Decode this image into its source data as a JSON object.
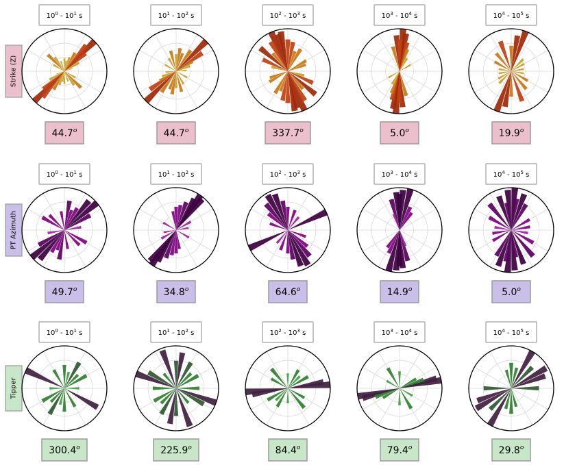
{
  "chart_data": {
    "type": "polar-rose",
    "periods": [
      "10^0 - 10^1 s",
      "10^1 - 10^2 s",
      "10^2 - 10^3 s",
      "10^3 - 10^4 s",
      "10^4 - 10^5 s"
    ],
    "rows": [
      {
        "label": "Strike (Z)",
        "label_bg": "#ebc0cc",
        "box_bg": "#ebc0cc",
        "colors": [
          "#c8c850",
          "#c8a024",
          "#c87814",
          "#c04010",
          "#a02808"
        ],
        "median_angles": [
          "44.7",
          "44.7",
          "337.7",
          "5.0",
          "19.9"
        ],
        "roses": [
          {
            "azimuths": [
              45,
              225,
              40,
              220,
              50,
              230,
              30,
              210,
              60,
              240,
              20,
              200,
              315,
              135,
              325,
              145,
              0,
              180,
              10,
              190,
              300,
              120,
              70,
              250,
              340,
              160
            ],
            "lengths": [
              1.0,
              1.0,
              0.8,
              0.8,
              0.65,
              0.65,
              0.5,
              0.5,
              0.4,
              0.4,
              0.35,
              0.35,
              0.55,
              0.55,
              0.4,
              0.4,
              0.3,
              0.3,
              0.25,
              0.25,
              0.3,
              0.3,
              0.2,
              0.2,
              0.25,
              0.25
            ]
          },
          {
            "azimuths": [
              45,
              225,
              55,
              235,
              35,
              215,
              20,
              200,
              10,
              190,
              0,
              180,
              330,
              150,
              300,
              120,
              70,
              250,
              85,
              265,
              345,
              165,
              60,
              240
            ],
            "lengths": [
              1.0,
              1.0,
              0.75,
              0.75,
              0.6,
              0.6,
              0.45,
              0.45,
              0.55,
              0.55,
              0.4,
              0.4,
              0.35,
              0.35,
              0.3,
              0.3,
              0.35,
              0.35,
              0.25,
              0.25,
              0.5,
              0.5,
              0.45,
              0.45
            ]
          },
          {
            "azimuths": [
              337,
              157,
              345,
              165,
              330,
              150,
              10,
              190,
              30,
              210,
              60,
              240,
              295,
              115,
              310,
              130,
              0,
              180,
              350,
              170,
              320,
              140,
              20,
              200,
              70,
              250,
              285,
              105
            ],
            "lengths": [
              1.0,
              1.0,
              0.9,
              0.9,
              0.8,
              0.8,
              0.7,
              0.7,
              0.6,
              0.6,
              0.5,
              0.5,
              0.65,
              0.65,
              0.85,
              0.85,
              0.75,
              0.75,
              0.95,
              0.95,
              0.55,
              0.55,
              0.5,
              0.5,
              0.45,
              0.45,
              0.4,
              0.4
            ]
          },
          {
            "azimuths": [
              5,
              185,
              10,
              190,
              355,
              175,
              15,
              195,
              20,
              200,
              345,
              165,
              30,
              210,
              60,
              240,
              0,
              180
            ],
            "lengths": [
              1.0,
              1.0,
              0.9,
              0.9,
              0.85,
              0.85,
              0.7,
              0.7,
              0.55,
              0.55,
              0.6,
              0.6,
              0.35,
              0.35,
              0.3,
              0.3,
              0.75,
              0.75
            ]
          },
          {
            "azimuths": [
              20,
              200,
              340,
              160,
              10,
              190,
              0,
              180,
              300,
              120,
              60,
              240,
              80,
              260,
              100,
              280,
              45,
              225,
              320,
              140
            ],
            "lengths": [
              1.0,
              1.0,
              0.75,
              0.75,
              0.85,
              0.85,
              0.6,
              0.6,
              0.45,
              0.45,
              0.35,
              0.35,
              0.3,
              0.3,
              0.3,
              0.3,
              0.4,
              0.4,
              0.55,
              0.55
            ]
          }
        ]
      },
      {
        "label": "PT Azimuth",
        "label_bg": "#c9bfe8",
        "box_bg": "#c9bfe8",
        "colors": [
          "#c030c0",
          "#a020a0",
          "#800080",
          "#5a0060",
          "#3c0040"
        ],
        "median_angles": [
          "49.7",
          "34.8",
          "64.6",
          "14.9",
          "5.0"
        ],
        "roses": [
          {
            "azimuths": [
              50,
              230,
              40,
              220,
              60,
              240,
              30,
              210,
              300,
              120,
              315,
              135,
              10,
              190,
              80,
              260,
              350,
              170,
              20,
              200
            ],
            "lengths": [
              1.0,
              1.0,
              0.9,
              0.9,
              0.7,
              0.7,
              0.6,
              0.6,
              0.6,
              0.6,
              0.5,
              0.5,
              0.7,
              0.7,
              0.4,
              0.4,
              0.45,
              0.45,
              0.5,
              0.5
            ]
          },
          {
            "azimuths": [
              35,
              215,
              40,
              220,
              30,
              210,
              20,
              200,
              10,
              190,
              0,
              180,
              350,
              170,
              60,
              240,
              300,
              120,
              80,
              260
            ],
            "lengths": [
              1.0,
              1.0,
              0.95,
              0.95,
              0.85,
              0.85,
              0.7,
              0.7,
              0.6,
              0.6,
              0.55,
              0.55,
              0.45,
              0.45,
              0.4,
              0.4,
              0.35,
              0.35,
              0.3,
              0.3
            ]
          },
          {
            "azimuths": [
              65,
              245,
              330,
              150,
              340,
              160,
              320,
              140,
              310,
              130,
              350,
              170,
              290,
              110,
              20,
              200,
              40,
              220,
              0,
              180
            ],
            "lengths": [
              1.0,
              1.0,
              0.95,
              0.95,
              0.9,
              0.9,
              0.8,
              0.8,
              0.6,
              0.6,
              0.7,
              0.7,
              0.45,
              0.45,
              0.5,
              0.5,
              0.4,
              0.4,
              0.55,
              0.55
            ]
          },
          {
            "azimuths": [
              15,
              195,
              5,
              185,
              355,
              175,
              345,
              165,
              25,
              205,
              35,
              215,
              0,
              180,
              340,
              160
            ],
            "lengths": [
              1.0,
              1.0,
              0.95,
              0.95,
              0.9,
              0.9,
              0.75,
              0.75,
              0.6,
              0.6,
              0.5,
              0.5,
              0.85,
              0.85,
              0.4,
              0.4
            ]
          },
          {
            "azimuths": [
              5,
              185,
              355,
              175,
              20,
              200,
              340,
              160,
              30,
              210,
              320,
              140,
              300,
              120,
              60,
              240,
              80,
              260,
              100,
              280,
              10,
              190,
              350,
              170
            ],
            "lengths": [
              1.0,
              1.0,
              0.95,
              0.95,
              0.9,
              0.9,
              0.85,
              0.85,
              0.7,
              0.7,
              0.8,
              0.8,
              0.6,
              0.6,
              0.5,
              0.5,
              0.45,
              0.45,
              0.4,
              0.4,
              0.75,
              0.75,
              0.65,
              0.65
            ]
          }
        ]
      },
      {
        "label": "Tipper",
        "label_bg": "#c8e6c8",
        "box_bg": "#c8e6c8",
        "colors": [
          "#50c050",
          "#40a040",
          "#308030",
          "#305830",
          "#402040"
        ],
        "median_angles": [
          "300.4",
          "225.9",
          "84.4",
          "79.4",
          "29.8"
        ],
        "roses": [
          {
            "azimuths": [
              295,
              120,
              60,
              240,
              30,
              210,
              0,
              180,
              330,
              150,
              270,
              90,
              45,
              225,
              15,
              195
            ],
            "lengths": [
              1.0,
              0.9,
              0.6,
              0.6,
              0.7,
              0.7,
              0.55,
              0.55,
              0.5,
              0.5,
              0.35,
              0.35,
              0.45,
              0.45,
              0.4,
              0.4
            ]
          },
          {
            "azimuths": [
              290,
              110,
              340,
              160,
              10,
              190,
              30,
              210,
              60,
              240,
              300,
              120,
              270,
              90,
              45,
              225,
              0,
              180,
              320,
              140
            ],
            "lengths": [
              1.0,
              1.0,
              0.95,
              0.95,
              0.85,
              0.85,
              0.7,
              0.7,
              0.6,
              0.6,
              0.75,
              0.75,
              0.55,
              0.55,
              0.5,
              0.5,
              0.65,
              0.65,
              0.45,
              0.45
            ]
          },
          {
            "azimuths": [
              85,
              265,
              80,
              260,
              60,
              240,
              320,
              140,
              30,
              210,
              300,
              120,
              0,
              180,
              45,
              225
            ],
            "lengths": [
              1.0,
              1.0,
              0.85,
              0.85,
              0.55,
              0.55,
              0.6,
              0.6,
              0.5,
              0.5,
              0.45,
              0.45,
              0.35,
              0.35,
              0.4,
              0.4
            ]
          },
          {
            "azimuths": [
              79,
              259,
              75,
              255,
              70,
              250,
              60,
              240,
              330,
              150,
              0,
              180,
              300,
              120
            ],
            "lengths": [
              1.0,
              1.0,
              0.9,
              0.9,
              0.6,
              0.6,
              0.45,
              0.45,
              0.55,
              0.55,
              0.4,
              0.4,
              0.35,
              0.35
            ]
          },
          {
            "azimuths": [
              30,
              210,
              60,
              240,
              70,
              250,
              90,
              270,
              0,
              180,
              345,
              165,
              15,
              195,
              45,
              225
            ],
            "lengths": [
              1.0,
              1.0,
              0.95,
              0.95,
              0.85,
              0.85,
              0.65,
              0.65,
              0.6,
              0.6,
              0.45,
              0.45,
              0.5,
              0.5,
              0.7,
              0.7
            ]
          }
        ]
      }
    ]
  }
}
